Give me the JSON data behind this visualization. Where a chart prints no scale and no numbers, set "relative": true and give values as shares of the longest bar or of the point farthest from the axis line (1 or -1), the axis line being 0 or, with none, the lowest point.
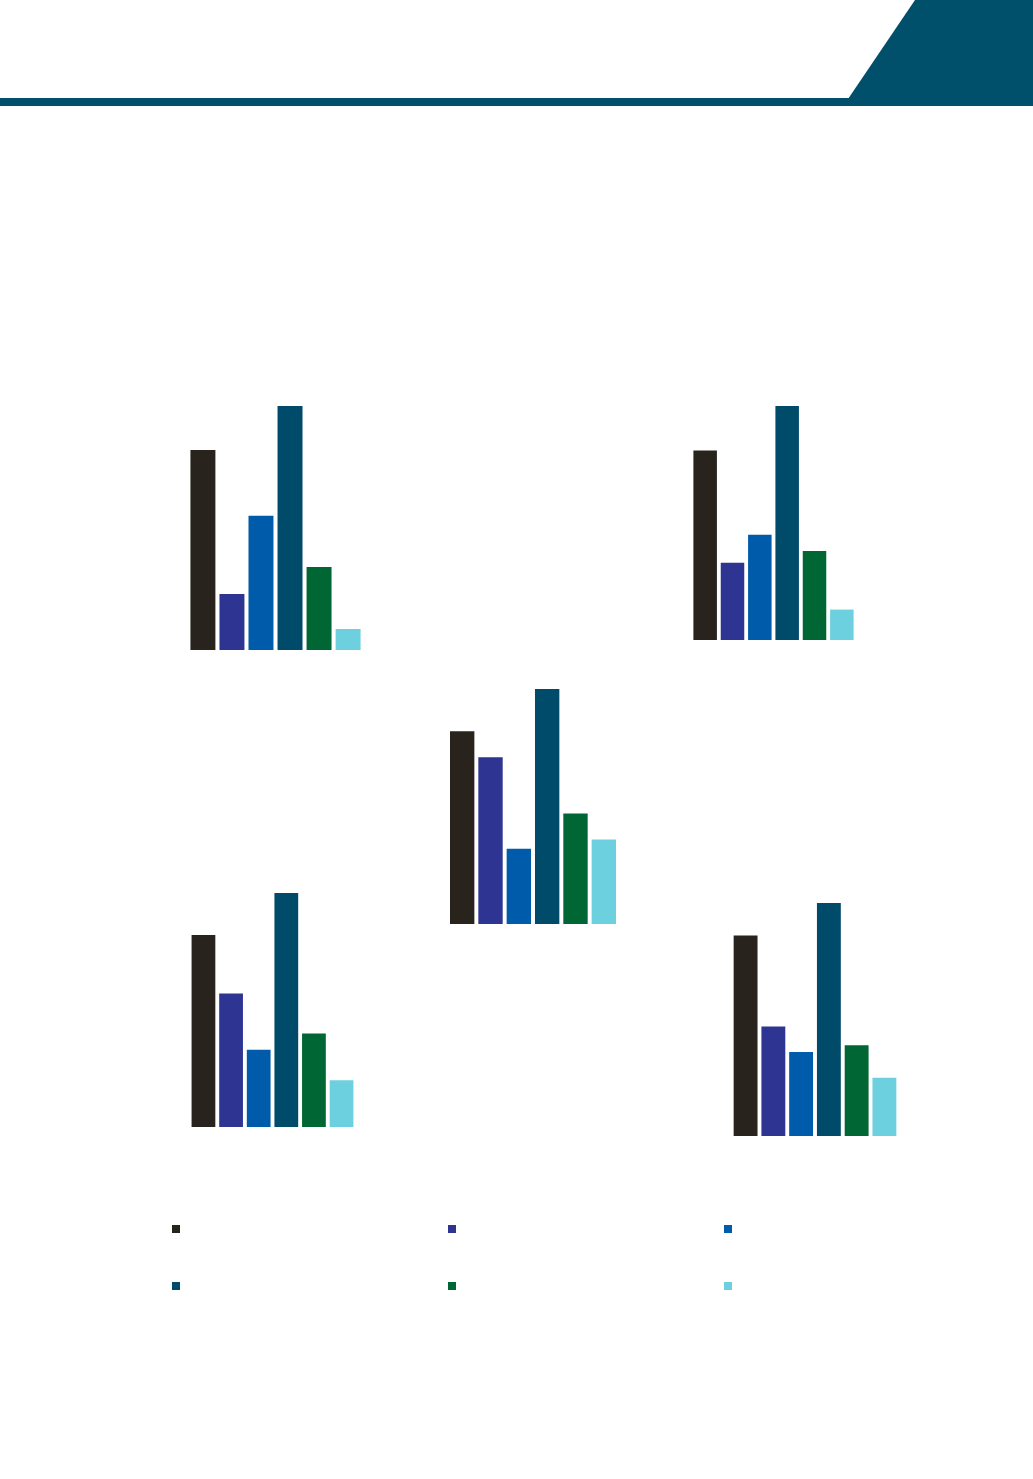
{
  "chart_data": [
    {
      "type": "bar",
      "relative": true,
      "categories": [
        null,
        null,
        null,
        null,
        null,
        null
      ],
      "values": [
        0.82,
        0.23,
        0.55,
        1,
        0.34,
        0.086
      ],
      "colors": [
        "#28231d",
        "#2e3491",
        "#005baa",
        "#004a6a",
        "#006633",
        "#6dd0de"
      ]
    },
    {
      "type": "bar",
      "relative": true,
      "categories": [
        null,
        null,
        null,
        null,
        null,
        null
      ],
      "values": [
        0.81,
        0.33,
        0.45,
        1,
        0.38,
        0.13
      ],
      "colors": [
        "#28231d",
        "#2e3491",
        "#005baa",
        "#004a6a",
        "#006633",
        "#6dd0de"
      ]
    },
    {
      "type": "bar",
      "relative": true,
      "categories": [
        null,
        null,
        null,
        null,
        null,
        null
      ],
      "values": [
        0.82,
        0.71,
        0.32,
        1,
        0.47,
        0.36
      ],
      "colors": [
        "#28231d",
        "#2e3491",
        "#005baa",
        "#004a6a",
        "#006633",
        "#6dd0de"
      ]
    },
    {
      "type": "bar",
      "relative": true,
      "categories": [
        null,
        null,
        null,
        null,
        null,
        null
      ],
      "values": [
        0.82,
        0.57,
        0.33,
        1,
        0.4,
        0.2
      ],
      "colors": [
        "#28231d",
        "#2e3491",
        "#005baa",
        "#004a6a",
        "#006633",
        "#6dd0de"
      ]
    },
    {
      "type": "bar",
      "relative": true,
      "categories": [
        null,
        null,
        null,
        null,
        null,
        null
      ],
      "values": [
        0.86,
        0.47,
        0.36,
        1,
        0.39,
        0.25
      ],
      "colors": [
        "#28231d",
        "#2e3491",
        "#005baa",
        "#004a6a",
        "#006633",
        "#6dd0de"
      ]
    }
  ]
}
